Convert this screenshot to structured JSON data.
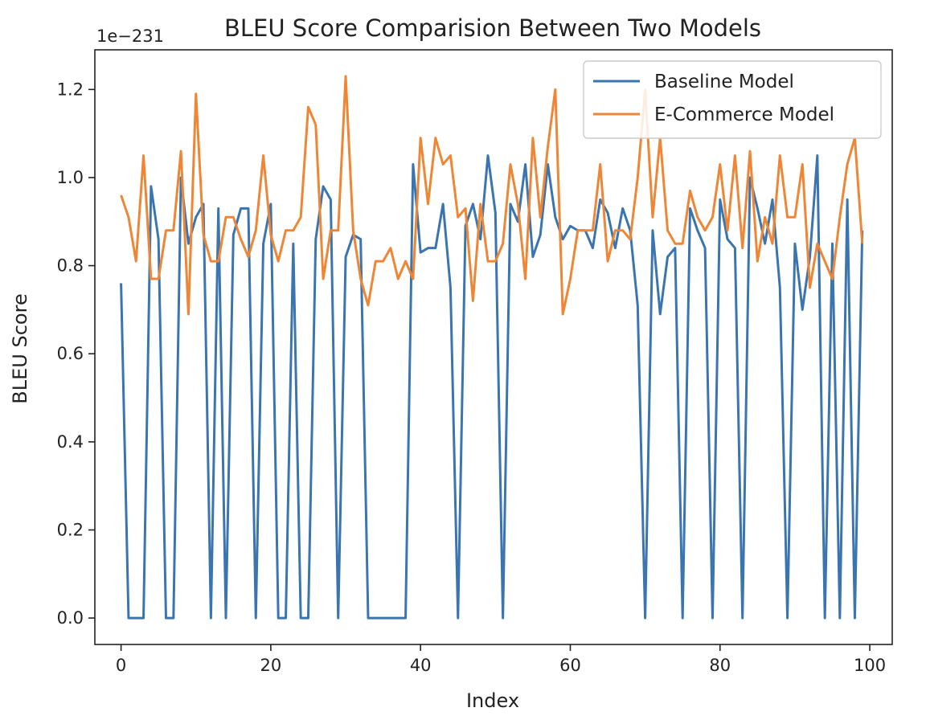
{
  "chart_data": {
    "type": "line",
    "title": "BLEU Score Comparision Between Two Models",
    "xlabel": "Index",
    "ylabel": "BLEU Score",
    "y_offset_text": "1e−231",
    "xlim": [
      -3.5,
      103
    ],
    "ylim": [
      -0.06,
      1.29
    ],
    "x_ticks": [
      0,
      20,
      40,
      60,
      80,
      100
    ],
    "x_tick_labels": [
      "0",
      "20",
      "40",
      "60",
      "80",
      "100"
    ],
    "y_ticks": [
      0.0,
      0.2,
      0.4,
      0.6,
      0.8,
      1.0,
      1.2
    ],
    "y_tick_labels": [
      "0.0",
      "0.2",
      "0.4",
      "0.6",
      "0.8",
      "1.0",
      "1.2"
    ],
    "grid": false,
    "legend_position": "top-right",
    "x": [
      0,
      1,
      2,
      3,
      4,
      5,
      6,
      7,
      8,
      9,
      10,
      11,
      12,
      13,
      14,
      15,
      16,
      17,
      18,
      19,
      20,
      21,
      22,
      23,
      24,
      25,
      26,
      27,
      28,
      29,
      30,
      31,
      32,
      33,
      34,
      35,
      36,
      37,
      38,
      39,
      40,
      41,
      42,
      43,
      44,
      45,
      46,
      47,
      48,
      49,
      50,
      51,
      52,
      53,
      54,
      55,
      56,
      57,
      58,
      59,
      60,
      61,
      62,
      63,
      64,
      65,
      66,
      67,
      68,
      69,
      70,
      71,
      72,
      73,
      74,
      75,
      76,
      77,
      78,
      79,
      80,
      81,
      82,
      83,
      84,
      85,
      86,
      87,
      88,
      89,
      90,
      91,
      92,
      93,
      94,
      95,
      96,
      97,
      98,
      99
    ],
    "series": [
      {
        "name": "Baseline Model",
        "color": "#3b75af",
        "values": [
          0.76,
          0,
          0,
          0,
          0.98,
          0.86,
          0,
          0,
          1.0,
          0.85,
          0.91,
          0.94,
          0,
          0.93,
          0,
          0.87,
          0.93,
          0.93,
          0,
          0.85,
          0.94,
          0,
          0,
          0.85,
          0,
          0,
          0.86,
          0.98,
          0.95,
          0,
          0.82,
          0.87,
          0.86,
          0,
          0,
          0,
          0,
          0,
          0,
          1.03,
          0.83,
          0.84,
          0.84,
          0.94,
          0.75,
          0,
          0.89,
          0.94,
          0.86,
          1.05,
          0.92,
          0,
          0.94,
          0.9,
          1.03,
          0.82,
          0.87,
          1.03,
          0.91,
          0.86,
          0.89,
          0.88,
          0.88,
          0.84,
          0.95,
          0.92,
          0.84,
          0.93,
          0.88,
          0.71,
          0,
          0.88,
          0.69,
          0.82,
          0.84,
          0,
          0.93,
          0.88,
          0.84,
          0,
          0.95,
          0.86,
          0.84,
          0,
          1.0,
          0.93,
          0.85,
          0.95,
          0.75,
          0,
          0.85,
          0.7,
          0.82,
          1.05,
          0,
          0.85,
          0,
          0.95,
          0,
          0.88
        ]
      },
      {
        "name": "E-Commerce Model",
        "color": "#ef8636",
        "values": [
          0.96,
          0.91,
          0.81,
          1.05,
          0.77,
          0.77,
          0.88,
          0.88,
          1.06,
          0.69,
          1.19,
          0.87,
          0.81,
          0.81,
          0.91,
          0.91,
          0.86,
          0.82,
          0.88,
          1.05,
          0.87,
          0.81,
          0.88,
          0.88,
          0.91,
          1.16,
          1.12,
          0.77,
          0.88,
          0.88,
          1.23,
          0.88,
          0.77,
          0.71,
          0.81,
          0.81,
          0.84,
          0.77,
          0.81,
          0.77,
          1.09,
          0.94,
          1.09,
          1.03,
          1.05,
          0.91,
          0.93,
          0.72,
          0.94,
          0.81,
          0.81,
          0.85,
          1.03,
          0.94,
          0.77,
          1.09,
          0.91,
          1.07,
          1.2,
          0.69,
          0.77,
          0.88,
          0.88,
          0.88,
          1.03,
          0.81,
          0.88,
          0.88,
          0.86,
          1.0,
          1.2,
          0.91,
          1.09,
          0.88,
          0.85,
          0.85,
          0.97,
          0.91,
          0.88,
          0.91,
          1.03,
          0.88,
          1.05,
          0.84,
          1.06,
          0.81,
          0.91,
          0.85,
          1.05,
          0.91,
          0.91,
          1.03,
          0.75,
          0.85,
          0.81,
          0.77,
          0.91,
          1.03,
          1.09,
          0.85
        ]
      }
    ]
  }
}
